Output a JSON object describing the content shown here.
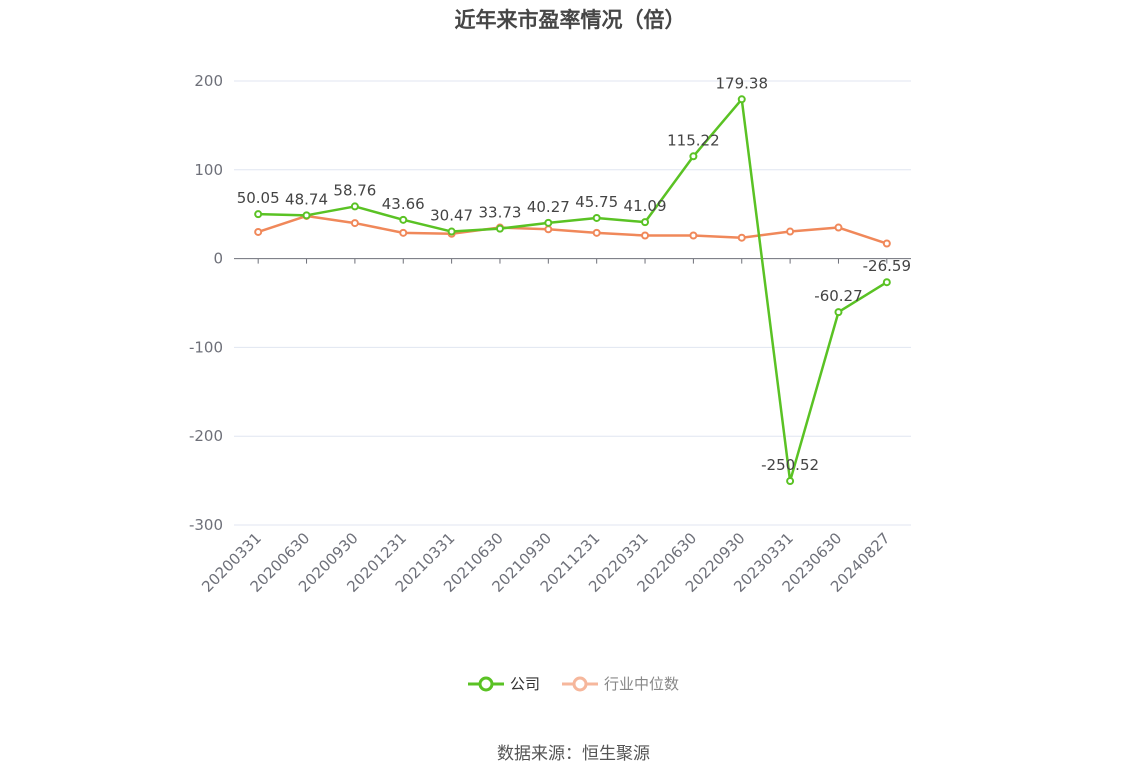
{
  "chart_data": {
    "type": "line",
    "title": "近年来市盈率情况（倍）",
    "categories": [
      "20200331",
      "20200630",
      "20200930",
      "20201231",
      "20210331",
      "20210630",
      "20210930",
      "20211231",
      "20220331",
      "20220630",
      "20220930",
      "20230331",
      "20230630",
      "20240827"
    ],
    "series": [
      {
        "name": "公司",
        "color": "#5ac224",
        "values": [
          50.05,
          48.74,
          58.76,
          43.66,
          30.47,
          33.73,
          40.27,
          45.75,
          41.09,
          115.22,
          179.38,
          -250.52,
          -60.27,
          -26.59
        ],
        "labels": [
          "50.05",
          "48.74",
          "58.76",
          "43.66",
          "30.47",
          "33.73",
          "40.27",
          "45.75",
          "41.09",
          "115.22",
          "179.38",
          "-250.52",
          "-60.27",
          "-26.59"
        ]
      },
      {
        "name": "行业中位数",
        "color": "#f0885a",
        "values": [
          30,
          48,
          40,
          29,
          28,
          35,
          33,
          29,
          26,
          26,
          23.5,
          30.5,
          35,
          17
        ]
      }
    ],
    "yticks": [
      "200",
      "100",
      "0",
      "-100",
      "-200",
      "-300"
    ],
    "ylim": [
      -300,
      200
    ],
    "grid": true,
    "legend_position": "bottom-center"
  },
  "source": "数据来源：恒生聚源"
}
